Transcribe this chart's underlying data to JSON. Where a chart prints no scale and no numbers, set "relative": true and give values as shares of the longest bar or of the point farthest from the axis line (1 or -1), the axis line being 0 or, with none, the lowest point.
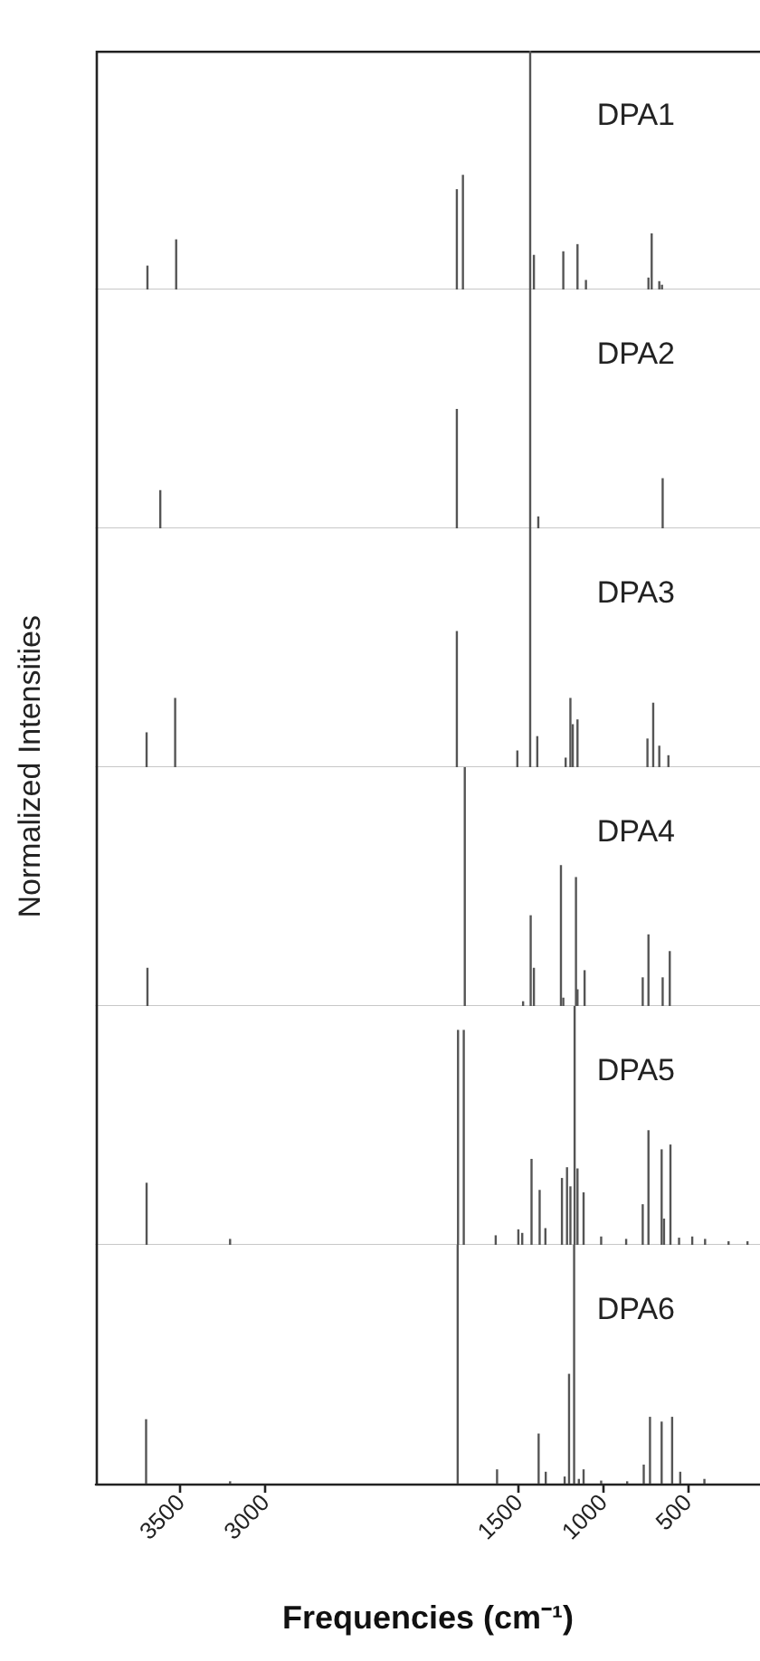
{
  "chart_data": [
    {
      "type": "bar",
      "title": "DPA1",
      "relative": true,
      "color": "#555555",
      "xlim": [
        4000,
        70
      ],
      "xticks": [
        3500,
        3000,
        1500,
        1000,
        500
      ],
      "tick_labels": false,
      "x": [
        3695,
        3525,
        1864,
        1828,
        1430,
        1408,
        1234,
        1150,
        1100,
        730,
        711,
        666,
        650
      ],
      "values": [
        0.1,
        0.21,
        0.42,
        0.48,
        1,
        0.145,
        0.16,
        0.19,
        0.04,
        0.05,
        0.235,
        0.035,
        0.02
      ]
    },
    {
      "type": "bar",
      "title": "DPA2",
      "relative": true,
      "color": "#555555",
      "xlim": [
        4000,
        70
      ],
      "xticks": [
        3500,
        3000,
        1500,
        1000,
        500
      ],
      "tick_labels": false,
      "x": [
        3619,
        1864,
        1430,
        1382,
        646
      ],
      "values": [
        0.16,
        0.5,
        1,
        0.05,
        0.21
      ]
    },
    {
      "type": "bar",
      "title": "DPA3",
      "ylabel": "Normalized Intensities",
      "relative": true,
      "color": "#555555",
      "xlim": [
        4000,
        70
      ],
      "xticks": [
        3500,
        3000,
        1500,
        1000,
        500
      ],
      "tick_labels": false,
      "x": [
        3700,
        3531,
        1864,
        1506,
        1430,
        1388,
        1220,
        1192,
        1178,
        1150,
        736,
        702,
        666,
        612
      ],
      "values": [
        0.146,
        0.29,
        0.57,
        0.07,
        1,
        0.13,
        0.04,
        0.29,
        0.18,
        0.2,
        0.12,
        0.27,
        0.09,
        0.05
      ]
    },
    {
      "type": "bar",
      "title": "DPA4",
      "relative": true,
      "color": "#555555",
      "xlim": [
        4000,
        70
      ],
      "xticks": [
        3500,
        3000,
        1500,
        1000,
        500
      ],
      "tick_labels": false,
      "x": [
        3695,
        1817,
        1472,
        1427,
        1408,
        1248,
        1234,
        1159,
        1150,
        1108,
        764,
        730,
        646,
        604
      ],
      "values": [
        0.16,
        1,
        0.02,
        0.38,
        0.16,
        0.59,
        0.035,
        0.54,
        0.07,
        0.15,
        0.12,
        0.3,
        0.12,
        0.23
      ]
    },
    {
      "type": "bar",
      "title": "DPA5",
      "relative": true,
      "color": "#555555",
      "xlim": [
        4000,
        70
      ],
      "xticks": [
        3500,
        3000,
        1500,
        1000,
        500
      ],
      "tick_labels": false,
      "x": [
        3700,
        3206,
        1857,
        1823,
        1634,
        1500,
        1477,
        1422,
        1374,
        1340,
        1242,
        1212,
        1192,
        1167,
        1150,
        1114,
        1010,
        862,
        764,
        730,
        652,
        638,
        600,
        549,
        471,
        395,
        256,
        144
      ],
      "values": [
        0.26,
        0.025,
        0.9,
        0.9,
        0.04,
        0.065,
        0.05,
        0.36,
        0.23,
        0.07,
        0.28,
        0.325,
        0.245,
        1,
        0.32,
        0.22,
        0.035,
        0.025,
        0.17,
        0.48,
        0.4,
        0.11,
        0.42,
        0.03,
        0.035,
        0.025,
        0.015,
        0.015
      ]
    },
    {
      "type": "bar",
      "title": "DPA6",
      "xlabel": "Frequencies (cm⁻¹)",
      "relative": true,
      "color": "#555555",
      "xlim": [
        4000,
        70
      ],
      "xticks": [
        3500,
        3000,
        1500,
        1000,
        500
      ],
      "tick_labels": "x",
      "x": [
        3703,
        3206,
        1859,
        1626,
        1380,
        1338,
        1226,
        1200,
        1170,
        1142,
        1114,
        1010,
        856,
        758,
        721,
        652,
        590,
        542,
        399
      ],
      "values": [
        0.27,
        0.01,
        1,
        0.06,
        0.21,
        0.05,
        0.03,
        0.46,
        1,
        0.02,
        0.06,
        0.013,
        0.01,
        0.08,
        0.28,
        0.26,
        0.28,
        0.05,
        0.02
      ]
    }
  ]
}
